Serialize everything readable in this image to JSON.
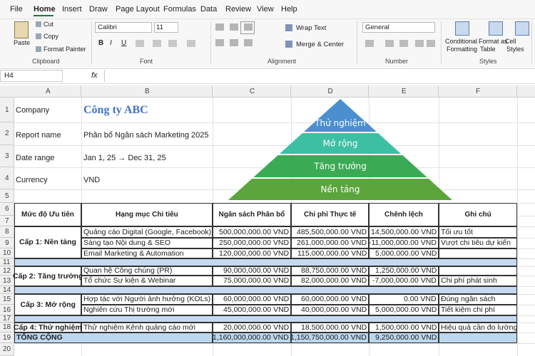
{
  "menu": [
    "File",
    "Home",
    "Insert",
    "Draw",
    "Page Layout",
    "Formulas",
    "Data",
    "Review",
    "View",
    "Help"
  ],
  "ribbon": {
    "clipboard": {
      "paste": "Paste",
      "cut": "Cut",
      "copy": "Copy",
      "format_painter": "Format Painter",
      "group": "Clipboard"
    },
    "font": {
      "name": "Calibri",
      "size": "11",
      "buttons": [
        "B",
        "I",
        "U"
      ],
      "group": "Font"
    },
    "alignment": {
      "wrap": "Wrap Text",
      "merge": "Merge & Center",
      "group": "Alignment"
    },
    "number": {
      "format": "General",
      "group": "Number"
    },
    "styles": {
      "conditional": [
        "Conditional",
        "Formatting"
      ],
      "table": [
        "Format as",
        "Table"
      ],
      "cell": [
        "Cell",
        "Styles"
      ],
      "group": "Styles"
    }
  },
  "formula_bar": {
    "name_box": "H4",
    "fx": "fx"
  },
  "columns": [
    "A",
    "B",
    "C",
    "D",
    "E",
    "F"
  ],
  "rows": [
    "1",
    "2",
    "3",
    "4",
    "5",
    "6",
    "7",
    "8",
    "9",
    "10",
    "11",
    "12",
    "13",
    "14",
    "15",
    "16",
    "17",
    "18",
    "19",
    "20"
  ],
  "info": [
    [
      "Company",
      "Công ty ABC"
    ],
    [
      "Report name",
      "Phân bổ Ngân sách Marketing 2025"
    ],
    [
      "Date range",
      "Jan 1, 25 → Dec 31, 25"
    ],
    [
      "Currency",
      "VND"
    ]
  ],
  "pyramid": [
    "Thử nghiệm",
    "Mở rộng",
    "Tăng trưởng",
    "Nền tảng"
  ],
  "table": {
    "header": [
      "Mức độ Ưu tiên",
      "Hạng mục Chi tiêu",
      "Ngân sách Phân bổ",
      "Chi phí Thực tế",
      "Chênh lệch",
      "Ghi chú"
    ],
    "groups": [
      {
        "level": "Cấp 1: Nền tảng",
        "items": [
          [
            "Quảng cáo Digital (Google, Facebook)",
            "500,000,000.00 VND",
            "485,500,000.00 VND",
            "14,500,000.00 VND",
            "Tối ưu tốt"
          ],
          [
            "Sáng tạo Nội dung & SEO",
            "250,000,000.00 VND",
            "261,000,000.00 VND",
            "-11,000,000.00 VND",
            "Vượt chi tiêu dự kiến"
          ],
          [
            "Email Marketing & Automation",
            "120,000,000.00 VND",
            "115,000,000.00 VND",
            "5,000,000.00 VND"
          ]
        ]
      },
      {
        "level": "Cấp 2: Tăng trưởng",
        "items": [
          [
            "Quan hệ Công chúng (PR)",
            "90,000,000.00 VND",
            "88,750,000.00 VND",
            "1,250,000.00 VND"
          ],
          [
            "Tổ chức Sự kiện & Webinar",
            "75,000,000.00 VND",
            "82,000,000.00 VND",
            "-7,000,000.00 VND",
            "Chi phí phát sinh"
          ]
        ]
      },
      {
        "level": "Cấp 3: Mở rộng",
        "items": [
          [
            "Hợp tác với Người ảnh hưởng (KOLs)",
            "60,000,000.00 VND",
            "60,000,000.00 VND",
            "0.00 VND",
            "Đúng ngân sách"
          ],
          [
            "Nghiên cứu Thị trường mới",
            "45,000,000.00 VND",
            "40,000,000.00 VND",
            "5,000,000.00 VND",
            "Tiết kiệm chi phí"
          ]
        ]
      },
      {
        "level": "Cấp 4: Thử nghiệm",
        "items": [
          [
            "Thử nghiệm Kênh quảng cáo mới",
            "20,000,000.00 VND",
            "18,500,000.00 VND",
            "1,500,000.00 VND",
            "Hiệu quả cần đo lường"
          ]
        ]
      }
    ],
    "total": [
      "TỔNG CỘNG",
      "1,160,000,000.00 VND",
      "1,150,750,000.00 VND",
      "9,250,000.00 VND"
    ]
  }
}
